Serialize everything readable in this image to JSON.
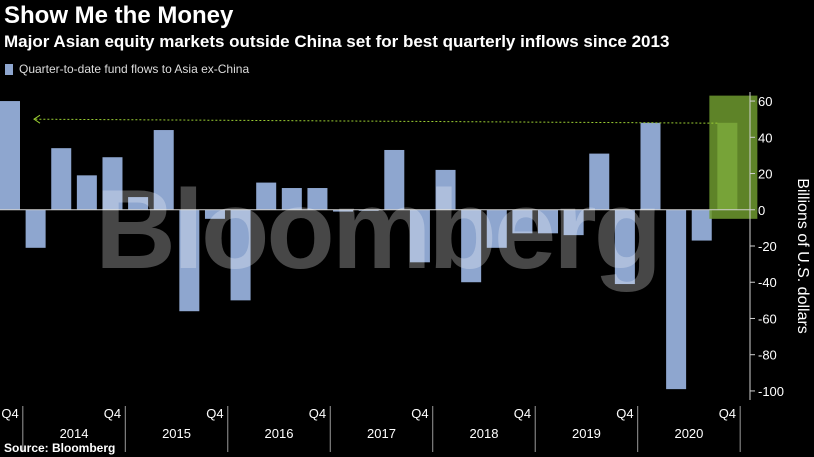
{
  "header": {
    "title": "Show Me the Money",
    "subtitle": "Major Asian equity markets outside China set for best quarterly inflows since 2013"
  },
  "legend": {
    "label": "Quarter-to-date fund flows to Asia ex-China",
    "color": "#8ea6cf"
  },
  "source": "Source: Bloomberg",
  "watermark": "Bloomberg",
  "colors": {
    "bar": "#8ea6cf",
    "highlight_bar": "#a6d46a",
    "highlight_box": "#6f9a2f",
    "arrow": "#9acd32",
    "background": "#000000",
    "text": "#ffffff"
  },
  "chart_data": {
    "type": "bar",
    "title": "Show Me the Money",
    "subtitle": "Major Asian equity markets outside China set for best quarterly inflows since 2013",
    "ylabel": "Billions of U.S. dollars",
    "ylim": [
      -105,
      65
    ],
    "yticks": [
      60,
      40,
      20,
      0,
      -20,
      -40,
      -60,
      -80,
      -100
    ],
    "y_axis_side": "right",
    "grid": false,
    "legend_position": "top-left",
    "series": [
      {
        "name": "Quarter-to-date fund flows to Asia ex-China",
        "categories": [
          "Q4 2013",
          "Q1 2014",
          "Q2 2014",
          "Q3 2014",
          "Q4 2014",
          "Q1 2015",
          "Q2 2015",
          "Q3 2015",
          "Q4 2015",
          "Q1 2016",
          "Q2 2016",
          "Q3 2016",
          "Q4 2016",
          "Q1 2017",
          "Q2 2017",
          "Q3 2017",
          "Q4 2017",
          "Q1 2018",
          "Q2 2018",
          "Q3 2018",
          "Q4 2018",
          "Q1 2019",
          "Q2 2019",
          "Q3 2019",
          "Q4 2019",
          "Q1 2020",
          "Q2 2020",
          "Q3 2020",
          "Q4 2020"
        ],
        "values": [
          60,
          -21,
          34,
          19,
          29,
          7,
          44,
          -56,
          -5,
          -50,
          15,
          12,
          12,
          -1,
          0,
          33,
          -29,
          22,
          -40,
          -21,
          -13,
          -13,
          -14,
          31,
          -41,
          48,
          -99,
          -17,
          48
        ]
      }
    ],
    "highlight": {
      "category": "Q4 2020",
      "value": 48
    },
    "reference_arrow": {
      "from": "Q4 2020",
      "to": "Q4 2013",
      "value": 50
    },
    "x_tick_labels": [
      "Q4",
      "Q4",
      "Q4",
      "Q4",
      "Q4",
      "Q4",
      "Q4",
      "Q4"
    ],
    "x_year_labels": [
      "2014",
      "2015",
      "2016",
      "2017",
      "2018",
      "2019",
      "2020"
    ]
  }
}
